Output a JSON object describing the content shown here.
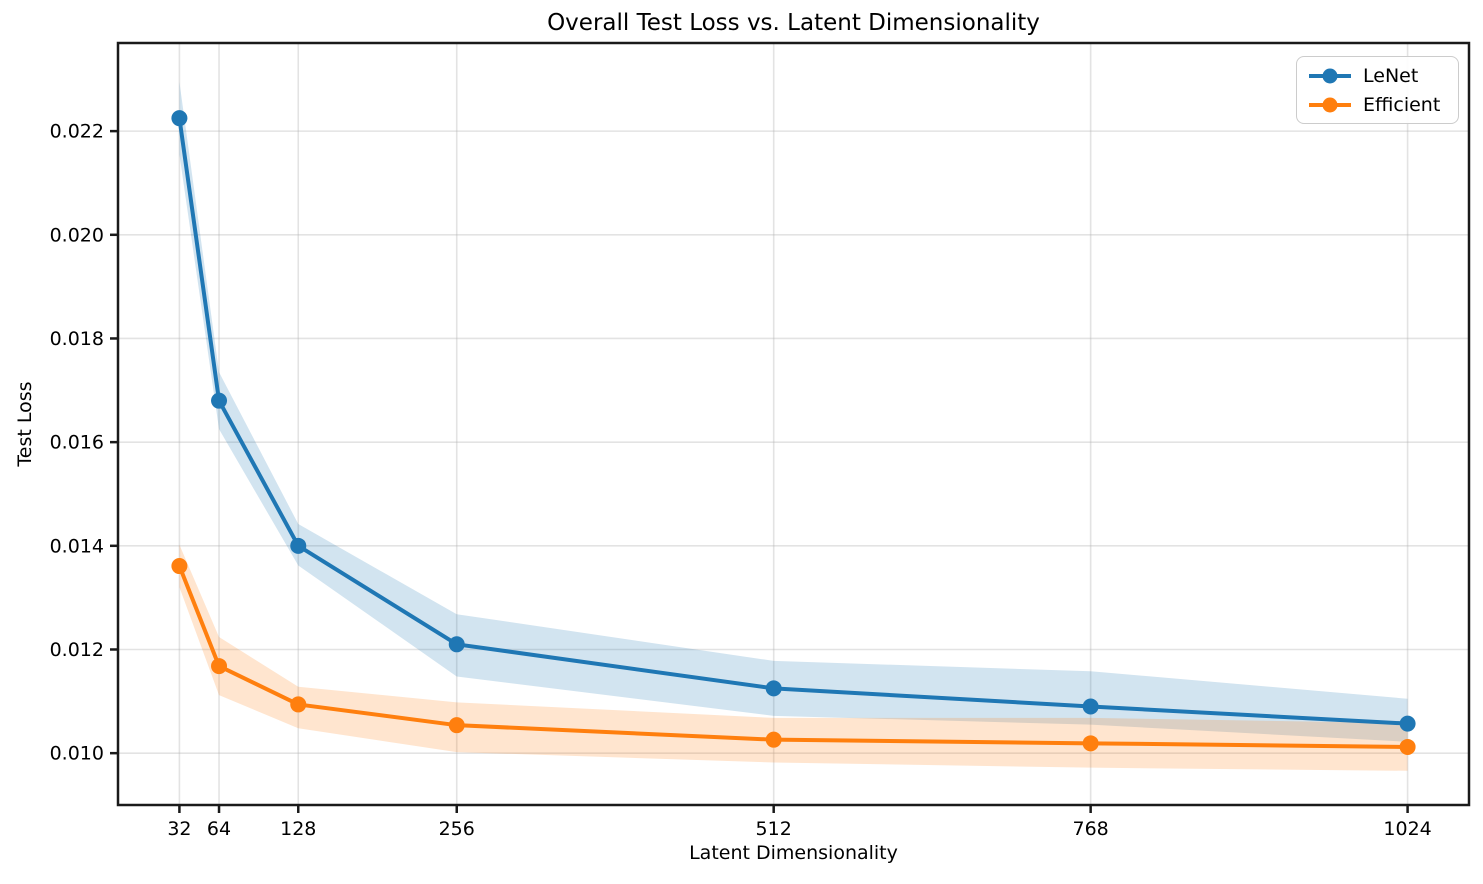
{
  "chart_data": {
    "type": "line",
    "title": "Overall Test Loss vs. Latent Dimensionality",
    "xlabel": "Latent Dimensionality",
    "ylabel": "Test Loss",
    "x": [
      32,
      64,
      128,
      256,
      512,
      768,
      1024
    ],
    "xticks": [
      32,
      64,
      128,
      256,
      512,
      768,
      1024
    ],
    "yticks": [
      0.01,
      0.012,
      0.014,
      0.016,
      0.018,
      0.02,
      0.022
    ],
    "ytick_labels": [
      "0.010",
      "0.012",
      "0.014",
      "0.016",
      "0.018",
      "0.020",
      "0.022"
    ],
    "xlim": [
      -17.6,
      1073.6
    ],
    "ylim": [
      0.009,
      0.0237
    ],
    "grid": true,
    "legend_position": "upper right",
    "band_opacity": 0.2,
    "grid_color": "#b0b0b0",
    "spine_color": "#1a1a1a",
    "series": [
      {
        "name": "LeNet",
        "color": "#1f77b4",
        "values": [
          0.02225,
          0.0168,
          0.014,
          0.0121,
          0.01125,
          0.0109,
          0.01057
        ],
        "band_upper": [
          0.02295,
          0.01735,
          0.01442,
          0.01268,
          0.01178,
          0.01158,
          0.01105
        ],
        "band_lower": [
          0.02155,
          0.01625,
          0.01362,
          0.01148,
          0.01072,
          0.01055,
          0.01022
        ]
      },
      {
        "name": "Efficient",
        "color": "#ff7f0e",
        "values": [
          0.01361,
          0.01168,
          0.01094,
          0.01054,
          0.01026,
          0.01019,
          0.01012
        ],
        "band_upper": [
          0.01402,
          0.01224,
          0.01128,
          0.01098,
          0.01068,
          0.01068,
          0.01058
        ],
        "band_lower": [
          0.0132,
          0.01112,
          0.01048,
          0.01002,
          0.00982,
          0.00972,
          0.00966
        ]
      }
    ]
  }
}
